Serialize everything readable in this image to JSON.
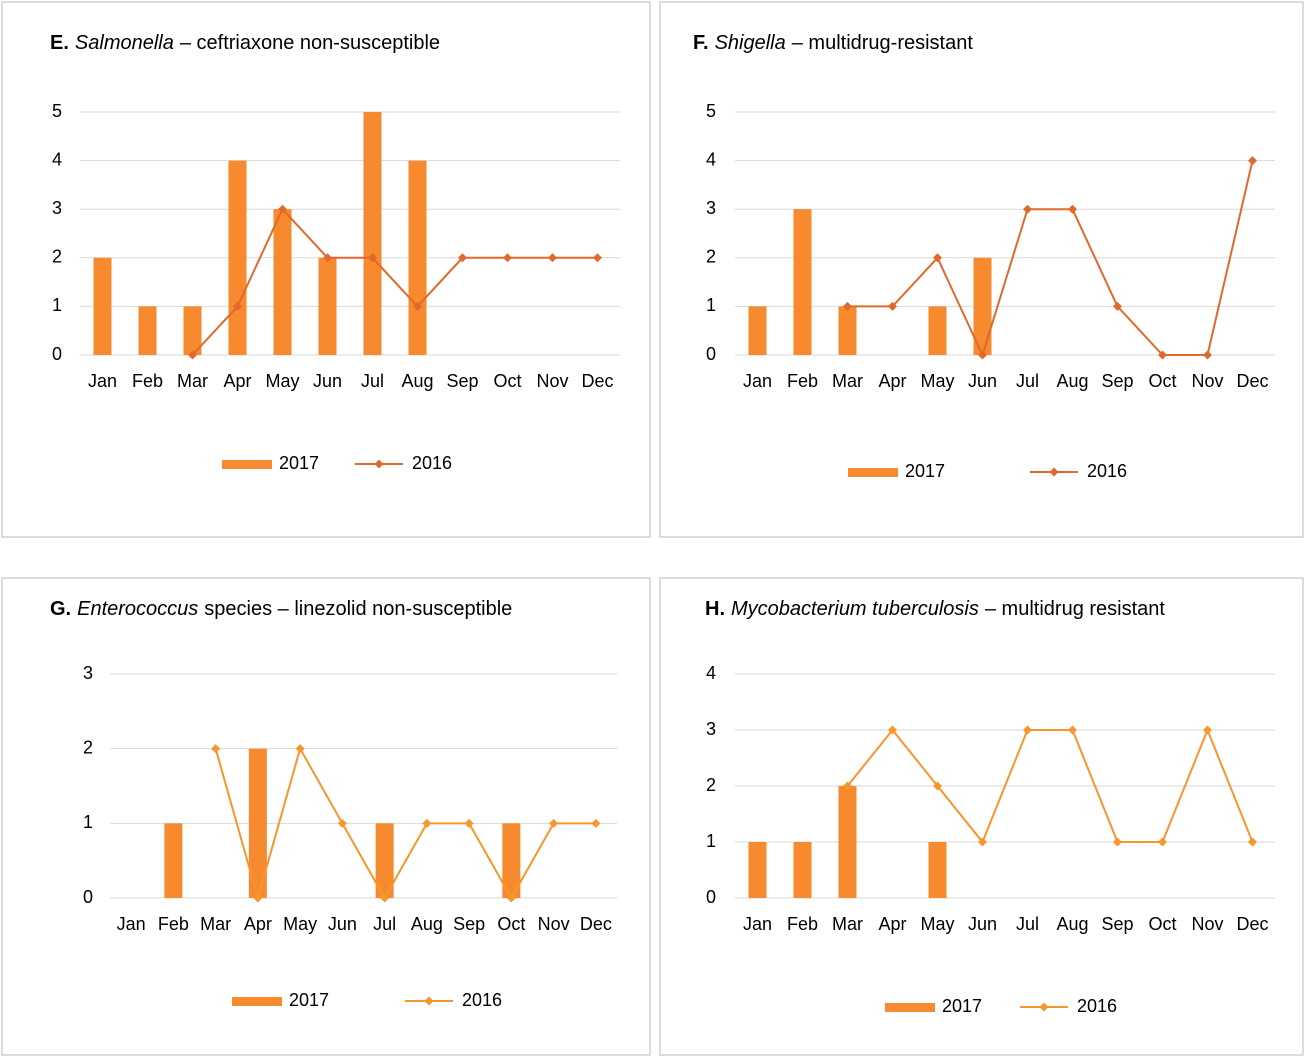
{
  "chart_data": [
    {
      "type": "bar_line",
      "title": [
        {
          "text": "E.",
          "style": "bold"
        },
        {
          "text": "Salmonella",
          "style": "italic"
        },
        {
          "text": "– ceftriaxone non-susceptible",
          "style": "normal"
        }
      ],
      "categories": [
        "Jan",
        "Feb",
        "Mar",
        "Apr",
        "May",
        "Jun",
        "Jul",
        "Aug",
        "Sep",
        "Oct",
        "Nov",
        "Dec"
      ],
      "series": [
        {
          "name": "2017",
          "kind": "bar",
          "color": "#f7892f",
          "values": [
            2,
            1,
            1,
            4,
            3,
            2,
            5,
            4,
            null,
            null,
            null,
            null
          ]
        },
        {
          "name": "2016",
          "kind": "line",
          "color": "#e0692b",
          "values": [
            null,
            null,
            0,
            1,
            3,
            2,
            2,
            1,
            2,
            2,
            2,
            2
          ]
        }
      ],
      "ylim": [
        0,
        5
      ],
      "yticks": [
        0,
        1,
        2,
        3,
        4,
        5
      ],
      "grid": true,
      "legend": "bottom"
    },
    {
      "type": "bar_line",
      "title": [
        {
          "text": "F.",
          "style": "bold"
        },
        {
          "text": "Shigella",
          "style": "italic"
        },
        {
          "text": "– multidrug-resistant",
          "style": "normal"
        }
      ],
      "categories": [
        "Jan",
        "Feb",
        "Mar",
        "Apr",
        "May",
        "Jun",
        "Jul",
        "Aug",
        "Sep",
        "Oct",
        "Nov",
        "Dec"
      ],
      "series": [
        {
          "name": "2017",
          "kind": "bar",
          "color": "#f7892f",
          "values": [
            1,
            3,
            1,
            null,
            1,
            2,
            null,
            null,
            null,
            null,
            null,
            null
          ]
        },
        {
          "name": "2016",
          "kind": "line",
          "color": "#e0692b",
          "values": [
            null,
            null,
            1,
            1,
            2,
            0,
            3,
            3,
            1,
            0,
            0,
            4
          ]
        }
      ],
      "ylim": [
        0,
        5
      ],
      "yticks": [
        0,
        1,
        2,
        3,
        4,
        5
      ],
      "grid": true,
      "legend": "bottom"
    },
    {
      "type": "bar_line",
      "title": [
        {
          "text": "G.",
          "style": "bold"
        },
        {
          "text": "Enterococcus",
          "style": "italic"
        },
        {
          "text": "species – linezolid non-susceptible",
          "style": "normal"
        }
      ],
      "categories": [
        "Jan",
        "Feb",
        "Mar",
        "Apr",
        "May",
        "Jun",
        "Jul",
        "Aug",
        "Sep",
        "Oct",
        "Nov",
        "Dec"
      ],
      "series": [
        {
          "name": "2017",
          "kind": "bar",
          "color": "#f7892f",
          "values": [
            null,
            1,
            null,
            2,
            null,
            null,
            1,
            null,
            null,
            1,
            null,
            null
          ]
        },
        {
          "name": "2016",
          "kind": "line",
          "color": "#f7962c",
          "values": [
            null,
            null,
            2,
            0,
            2,
            1,
            0,
            1,
            1,
            0,
            1,
            1
          ]
        }
      ],
      "ylim": [
        0,
        3
      ],
      "yticks": [
        0,
        1,
        2,
        3
      ],
      "grid": true,
      "legend": "bottom"
    },
    {
      "type": "bar_line",
      "title": [
        {
          "text": "H.",
          "style": "bold"
        },
        {
          "text": "Mycobacterium tuberculosis",
          "style": "italic"
        },
        {
          "text": "– multidrug resistant",
          "style": "normal"
        }
      ],
      "categories": [
        "Jan",
        "Feb",
        "Mar",
        "Apr",
        "May",
        "Jun",
        "Jul",
        "Aug",
        "Sep",
        "Oct",
        "Nov",
        "Dec"
      ],
      "series": [
        {
          "name": "2017",
          "kind": "bar",
          "color": "#f7892f",
          "values": [
            1,
            1,
            2,
            null,
            1,
            null,
            null,
            null,
            null,
            null,
            null,
            null
          ]
        },
        {
          "name": "2016",
          "kind": "line",
          "color": "#f7962c",
          "values": [
            null,
            null,
            2,
            3,
            2,
            1,
            3,
            3,
            1,
            1,
            3,
            1
          ]
        }
      ],
      "ylim": [
        0,
        4
      ],
      "yticks": [
        0,
        1,
        2,
        3,
        4
      ],
      "grid": true,
      "legend": "bottom"
    }
  ]
}
